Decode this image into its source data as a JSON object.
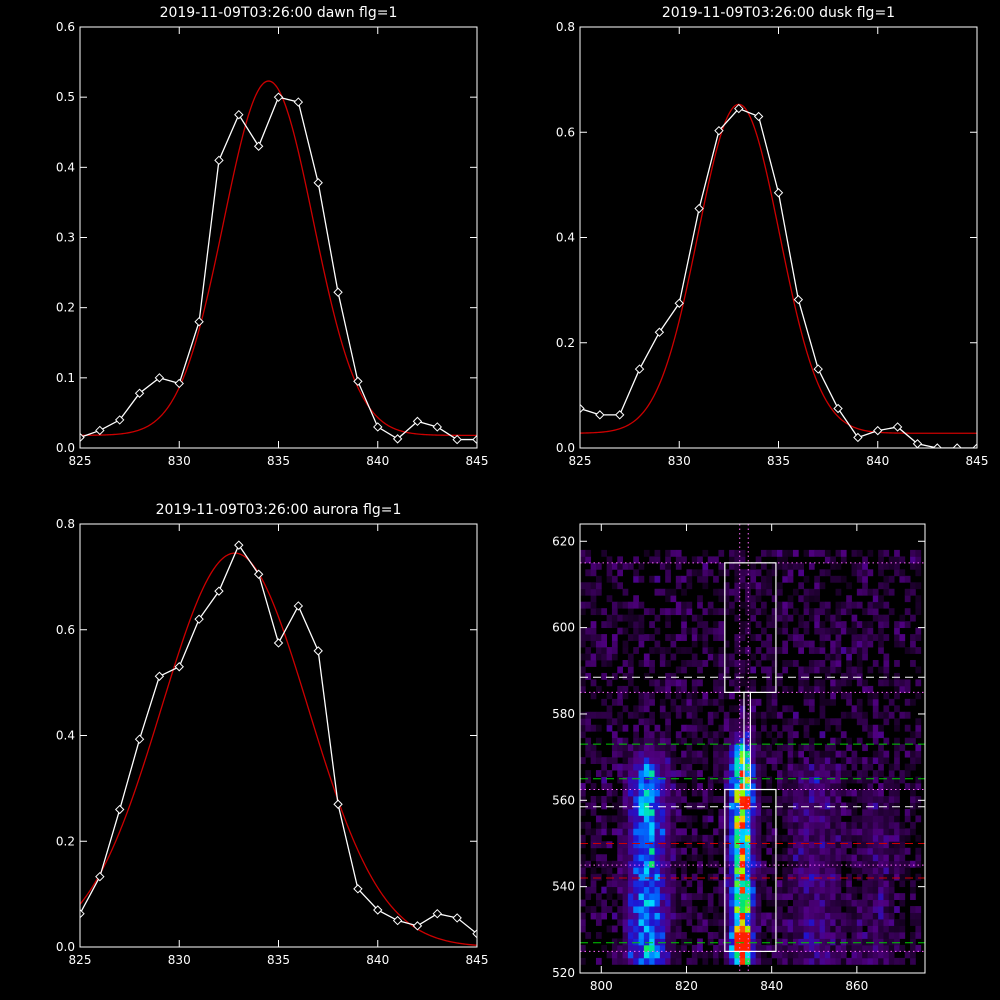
{
  "chart_data": [
    {
      "type": "line",
      "title": "2019-11-09T03:26:00 dawn flg=1",
      "xlim": [
        825,
        845
      ],
      "ylim": [
        0,
        0.6
      ],
      "xticks": [
        825,
        830,
        835,
        840,
        845
      ],
      "yticks": [
        0.0,
        0.1,
        0.2,
        0.3,
        0.4,
        0.5,
        0.6
      ],
      "ytick_labels": [
        "0.0",
        "0.1",
        "0.2",
        "0.3",
        "0.4",
        "0.5",
        "0.6"
      ],
      "series": [
        {
          "style": "line-diamond",
          "color": "#ffffff",
          "x": [
            825,
            826,
            827,
            828,
            829,
            830,
            831,
            832,
            833,
            834,
            835,
            836,
            837,
            838,
            839,
            840,
            841,
            842,
            843,
            844,
            845
          ],
          "y": [
            0.015,
            0.025,
            0.04,
            0.078,
            0.1,
            0.092,
            0.18,
            0.41,
            0.475,
            0.43,
            0.5,
            0.493,
            0.378,
            0.222,
            0.095,
            0.03,
            0.013,
            0.038,
            0.03,
            0.012,
            0.012
          ]
        },
        {
          "style": "gaussian-fit",
          "color": "#cc0000",
          "amplitude": 0.505,
          "center": 834.5,
          "sigma": 2.25,
          "offset": 0.018
        }
      ]
    },
    {
      "type": "line",
      "title": "2019-11-09T03:26:00 dusk flg=1",
      "xlim": [
        825,
        845
      ],
      "ylim": [
        0,
        0.8
      ],
      "xticks": [
        825,
        830,
        835,
        840,
        845
      ],
      "yticks": [
        0.0,
        0.2,
        0.4,
        0.6,
        0.8
      ],
      "ytick_labels": [
        "0.0",
        "0.2",
        "0.4",
        "0.6",
        "0.8"
      ],
      "series": [
        {
          "style": "line-diamond",
          "color": "#ffffff",
          "x": [
            825,
            826,
            827,
            828,
            829,
            830,
            831,
            832,
            833,
            834,
            835,
            836,
            837,
            838,
            839,
            840,
            841,
            842,
            843,
            844,
            845
          ],
          "y": [
            0.075,
            0.063,
            0.063,
            0.15,
            0.22,
            0.275,
            0.455,
            0.603,
            0.645,
            0.63,
            0.485,
            0.282,
            0.15,
            0.075,
            0.02,
            0.033,
            0.04,
            0.008,
            0.0,
            0.0,
            0.0
          ]
        },
        {
          "style": "gaussian-fit",
          "color": "#cc0000",
          "amplitude": 0.625,
          "center": 833.0,
          "sigma": 2.05,
          "offset": 0.028
        }
      ]
    },
    {
      "type": "line",
      "title": "2019-11-09T03:26:00 aurora flg=1",
      "xlim": [
        825,
        845
      ],
      "ylim": [
        0,
        0.8
      ],
      "xticks": [
        825,
        830,
        835,
        840,
        845
      ],
      "yticks": [
        0.0,
        0.2,
        0.4,
        0.6,
        0.8
      ],
      "ytick_labels": [
        "0.0",
        "0.2",
        "0.4",
        "0.6",
        "0.8"
      ],
      "series": [
        {
          "style": "line-diamond",
          "color": "#ffffff",
          "x": [
            825,
            826,
            827,
            828,
            829,
            830,
            831,
            832,
            833,
            834,
            835,
            836,
            837,
            838,
            839,
            840,
            841,
            842,
            843,
            844,
            845
          ],
          "y": [
            0.063,
            0.133,
            0.26,
            0.393,
            0.512,
            0.53,
            0.62,
            0.673,
            0.76,
            0.705,
            0.575,
            0.645,
            0.56,
            0.27,
            0.11,
            0.07,
            0.05,
            0.04,
            0.063,
            0.055,
            0.025
          ]
        },
        {
          "style": "gaussian-fit",
          "color": "#cc0000",
          "amplitude": 0.745,
          "center": 832.8,
          "sigma": 3.7,
          "offset": 0.0
        }
      ]
    },
    {
      "type": "heatmap",
      "title": "",
      "xlim": [
        795,
        876
      ],
      "ylim": [
        520,
        624
      ],
      "xticks": [
        800,
        820,
        840,
        860
      ],
      "yticks": [
        520,
        540,
        560,
        580,
        600,
        620
      ],
      "data_xrange": [
        795,
        875
      ],
      "data_yrange": [
        522,
        618
      ],
      "colormap": "rainbow-on-black",
      "streaks": [
        {
          "center_x": 811,
          "width": 6,
          "y_from": 522,
          "y_to": 567,
          "intensity": 0.45
        },
        {
          "center_x": 833,
          "width": 3.5,
          "y_from": 522,
          "y_to": 571,
          "intensity": 0.8
        },
        {
          "center_x": 850,
          "width": 8,
          "y_from": 522,
          "y_to": 566,
          "intensity": 0.12
        },
        {
          "center_x": 865,
          "width": 6,
          "y_from": 522,
          "y_to": 560,
          "intensity": 0.08
        }
      ],
      "hot_spots": [
        {
          "x": 833,
          "y": 526,
          "value": 1.0
        },
        {
          "x": 833,
          "y": 528,
          "value": 0.9
        },
        {
          "x": 834,
          "y": 560,
          "value": 0.7
        }
      ],
      "lines": [
        {
          "orientation": "v",
          "at": 832.5,
          "color": "#ff66ff",
          "dash": "dotted"
        },
        {
          "orientation": "v",
          "at": 834.5,
          "color": "#ff66ff",
          "dash": "dotted"
        },
        {
          "orientation": "h",
          "at": 615,
          "color": "#ff66ff",
          "dash": "dotted"
        },
        {
          "orientation": "h",
          "at": 588.5,
          "color": "#ffffff",
          "dash": "dashed"
        },
        {
          "orientation": "h",
          "at": 585,
          "color": "#ff66ff",
          "dash": "dotted"
        },
        {
          "orientation": "h",
          "at": 573,
          "color": "#00cc00",
          "dash": "dashed"
        },
        {
          "orientation": "h",
          "at": 565,
          "color": "#00cc00",
          "dash": "dashed"
        },
        {
          "orientation": "h",
          "at": 562.5,
          "color": "#ff66ff",
          "dash": "dotted"
        },
        {
          "orientation": "h",
          "at": 558.5,
          "color": "#ffffff",
          "dash": "dashed"
        },
        {
          "orientation": "h",
          "at": 550,
          "color": "#cc0000",
          "dash": "dashed"
        },
        {
          "orientation": "h",
          "at": 545,
          "color": "#ff66ff",
          "dash": "dotted"
        },
        {
          "orientation": "h",
          "at": 542,
          "color": "#cc0000",
          "dash": "dashed"
        },
        {
          "orientation": "h",
          "at": 527,
          "color": "#00cc00",
          "dash": "dashed"
        },
        {
          "orientation": "h",
          "at": 525,
          "color": "#ff66ff",
          "dash": "dotted"
        }
      ],
      "boxes": [
        {
          "x0": 829,
          "x1": 841,
          "y0": 585,
          "y1": 615,
          "color": "#ffffff"
        },
        {
          "x0": 833.5,
          "x1": 835,
          "y0": 562.5,
          "y1": 585,
          "color": "#ffffff"
        },
        {
          "x0": 829,
          "x1": 841,
          "y0": 525,
          "y1": 562.5,
          "color": "#ffffff"
        }
      ]
    }
  ]
}
